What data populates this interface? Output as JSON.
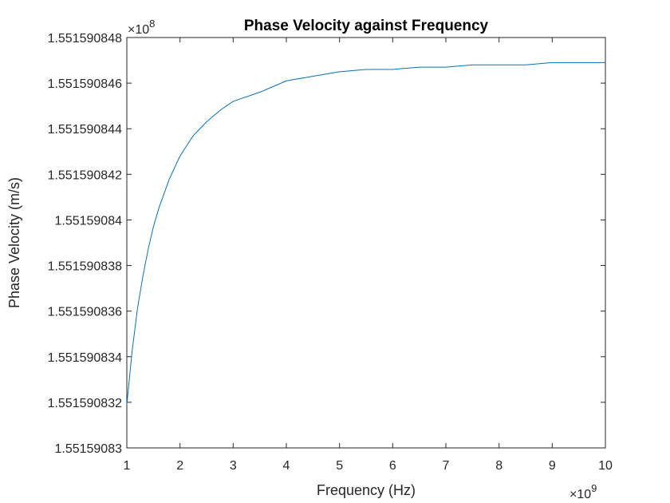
{
  "chart_data": {
    "type": "line",
    "title": "Phase Velocity against Frequency",
    "xlabel": "Frequency (Hz)",
    "ylabel": "Phase Velocity (m/s)",
    "x_multiplier_base": "×10",
    "x_multiplier_exp": "9",
    "y_multiplier_base": "×10",
    "y_multiplier_exp": "8",
    "xlim": [
      1,
      10
    ],
    "ylim": [
      1.55159083,
      1.551590848
    ],
    "x_ticks": [
      1,
      2,
      3,
      4,
      5,
      6,
      7,
      8,
      9,
      10
    ],
    "x_tick_labels": [
      "1",
      "2",
      "3",
      "4",
      "5",
      "6",
      "7",
      "8",
      "9",
      "10"
    ],
    "y_ticks": [
      1.55159083,
      1.551590832,
      1.551590834,
      1.551590836,
      1.551590838,
      1.55159084,
      1.551590842,
      1.551590844,
      1.551590846,
      1.551590848
    ],
    "y_tick_labels": [
      "1.55159083",
      "1.551590832",
      "1.551590834",
      "1.551590836",
      "1.551590838",
      "1.55159084",
      "1.551590842",
      "1.551590844",
      "1.551590846",
      "1.551590848"
    ],
    "series": [
      {
        "name": "Phase Velocity",
        "color": "#0072bd",
        "x": [
          1,
          1.1,
          1.2,
          1.3,
          1.4,
          1.5,
          1.6,
          1.8,
          2,
          2.25,
          2.5,
          2.75,
          3,
          3.5,
          4,
          4.5,
          5,
          5.5,
          6,
          6.5,
          7,
          7.5,
          8,
          8.5,
          9,
          9.5,
          10
        ],
        "y": [
          1.5515908319,
          1.55159083425,
          1.5515908361,
          1.5515908375,
          1.5515908387,
          1.5515908397,
          1.5515908405,
          1.5515908418,
          1.5515908428,
          1.5515908437,
          1.5515908443,
          1.5515908448,
          1.5515908452,
          1.5515908456,
          1.5515908461,
          1.5515908463,
          1.5515908465,
          1.5515908466,
          1.5515908466,
          1.5515908467,
          1.5515908467,
          1.5515908468,
          1.5515908468,
          1.5515908468,
          1.5515908469,
          1.5515908469,
          1.5515908469
        ]
      }
    ]
  }
}
